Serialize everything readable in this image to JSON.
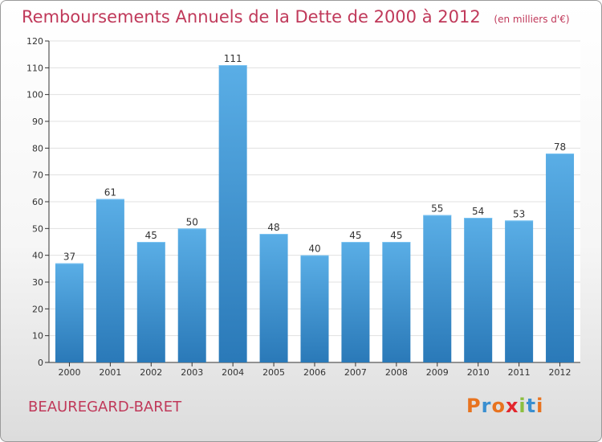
{
  "header": {
    "title": "Remboursements Annuels de la Dette de 2000 à 2012",
    "subtitle": "(en milliers d'€)"
  },
  "commune": "BEAUREGARD-BARET",
  "logo": {
    "text": "Proxiti",
    "colors": [
      "#e8731f",
      "#3a8fd0",
      "#e8731f",
      "#e3262d",
      "#8cbf3f",
      "#3a8fd0",
      "#e8731f"
    ]
  },
  "colors": {
    "bar_top": "#5aaee6",
    "bar_bottom": "#2a79b8",
    "title": "#c0395a",
    "grid": "#e0e0e0",
    "axis": "#333333"
  },
  "chart_data": {
    "type": "bar",
    "categories": [
      "2000",
      "2001",
      "2002",
      "2003",
      "2004",
      "2005",
      "2006",
      "2007",
      "2008",
      "2009",
      "2010",
      "2011",
      "2012"
    ],
    "values": [
      37,
      61,
      45,
      50,
      111,
      48,
      40,
      45,
      45,
      55,
      54,
      53,
      78
    ],
    "ylim": [
      0,
      120
    ],
    "yticks": [
      0,
      10,
      20,
      30,
      40,
      50,
      60,
      70,
      80,
      90,
      100,
      110,
      120
    ],
    "grid": true
  }
}
